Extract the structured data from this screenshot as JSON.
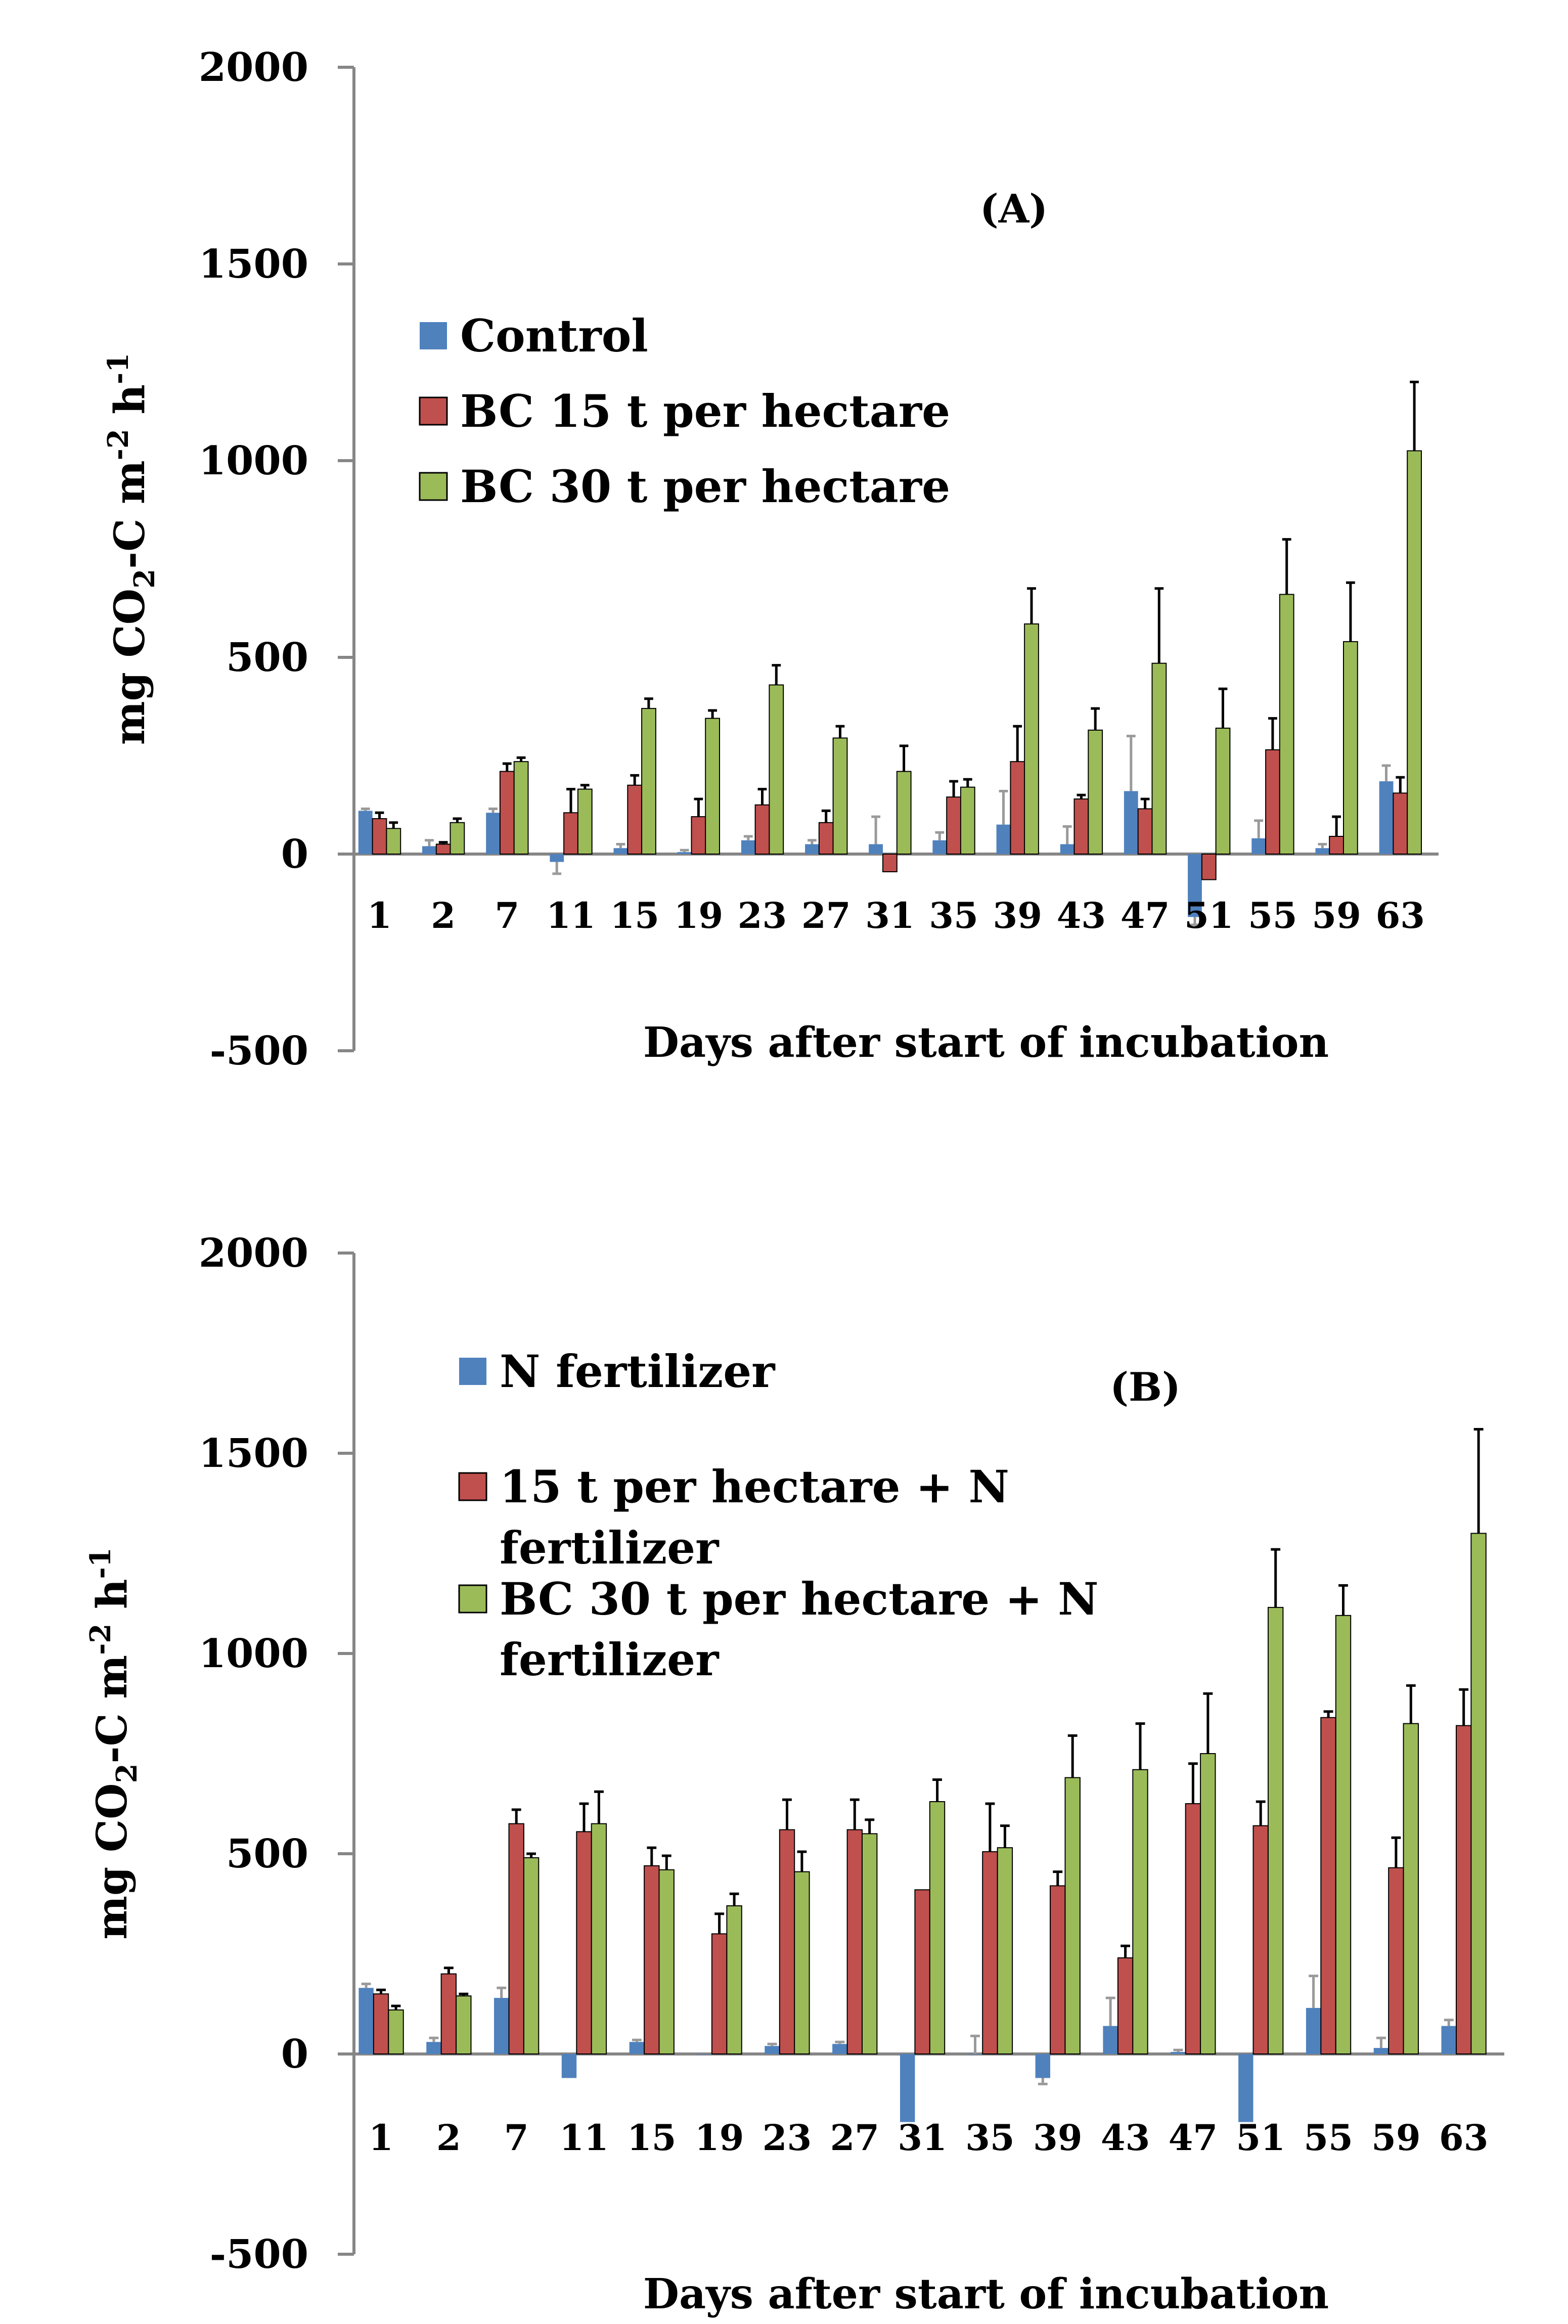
{
  "chart_data": [
    {
      "type": "bar",
      "panel": "(A)",
      "title": "",
      "xlabel": "Days after start of incubation",
      "ylabel": "mg CO2-C m-2 h-1",
      "ylabel_parts": {
        "pre": "mg CO",
        "sub": "2",
        "mid": "-C m",
        "sup1": "-2",
        "mid2": " h",
        "sup2": "-1"
      },
      "ylim": [
        -500,
        2000
      ],
      "yticks": [
        -500,
        0,
        500,
        1000,
        1500,
        2000
      ],
      "legend_position": "top-left",
      "categories": [
        "1",
        "2",
        "7",
        "11",
        "15",
        "19",
        "23",
        "27",
        "31",
        "35",
        "39",
        "43",
        "47",
        "51",
        "55",
        "59",
        "63"
      ],
      "series": [
        {
          "name": "Control",
          "color": "#4f81bd",
          "values": [
            110,
            20,
            105,
            -20,
            15,
            5,
            35,
            25,
            25,
            35,
            75,
            25,
            160,
            -160,
            40,
            15,
            185
          ],
          "errors": [
            5,
            15,
            10,
            30,
            10,
            5,
            10,
            10,
            70,
            20,
            85,
            45,
            140,
            20,
            45,
            10,
            40
          ]
        },
        {
          "name": "BC 15 t per hectare",
          "color": "#c0504d",
          "values": [
            90,
            25,
            210,
            105,
            175,
            95,
            125,
            80,
            -45,
            145,
            235,
            140,
            115,
            -65,
            265,
            45,
            155
          ],
          "errors": [
            15,
            5,
            20,
            60,
            25,
            45,
            40,
            30,
            0,
            40,
            90,
            10,
            25,
            0,
            80,
            50,
            40
          ]
        },
        {
          "name": "BC 30 t per hectare",
          "color": "#9bbb59",
          "values": [
            65,
            80,
            235,
            165,
            370,
            345,
            430,
            295,
            210,
            170,
            585,
            315,
            485,
            320,
            660,
            540,
            1025
          ],
          "errors": [
            15,
            10,
            10,
            10,
            25,
            20,
            50,
            30,
            65,
            20,
            90,
            55,
            190,
            100,
            140,
            150,
            175
          ]
        }
      ]
    },
    {
      "type": "bar",
      "panel": "(B)",
      "title": "",
      "xlabel": "Days after start of incubation",
      "ylabel": "mg CO2-C m-2 h-1",
      "ylabel_parts": {
        "pre": "mg CO",
        "sub": "2",
        "mid": "-C m",
        "sup1": "-2",
        "mid2": " h",
        "sup2": "-1"
      },
      "ylim": [
        -500,
        2000
      ],
      "yticks": [
        -500,
        0,
        500,
        1000,
        1500,
        2000
      ],
      "legend_position": "top-left",
      "categories": [
        "1",
        "2",
        "7",
        "11",
        "15",
        "19",
        "23",
        "27",
        "31",
        "35",
        "39",
        "43",
        "47",
        "51",
        "55",
        "59",
        "63"
      ],
      "series": [
        {
          "name": "N fertilizer",
          "label_lines": [
            "N fertilizer"
          ],
          "color": "#4f81bd",
          "values": [
            165,
            30,
            140,
            -60,
            30,
            0,
            20,
            25,
            -170,
            0,
            -60,
            70,
            5,
            -170,
            115,
            15,
            70
          ],
          "errors": [
            10,
            10,
            25,
            0,
            5,
            0,
            5,
            5,
            0,
            45,
            15,
            70,
            5,
            0,
            80,
            25,
            15
          ]
        },
        {
          "name": "15 t per hectare + N fertilizer",
          "label_lines": [
            "15 t per hectare + N",
            "fertilizer"
          ],
          "color": "#c0504d",
          "values": [
            150,
            200,
            575,
            555,
            470,
            300,
            560,
            560,
            410,
            505,
            420,
            240,
            625,
            570,
            840,
            465,
            820
          ],
          "errors": [
            10,
            15,
            35,
            70,
            45,
            50,
            75,
            75,
            0,
            120,
            35,
            30,
            100,
            60,
            15,
            75,
            90
          ]
        },
        {
          "name": "BC 30 t per hectare + N fertilizer",
          "label_lines": [
            "BC 30 t per hectare + N",
            "fertilizer"
          ],
          "color": "#9bbb59",
          "values": [
            110,
            145,
            490,
            575,
            460,
            370,
            455,
            550,
            630,
            515,
            690,
            710,
            750,
            1115,
            1095,
            825,
            1300
          ],
          "errors": [
            10,
            5,
            10,
            80,
            35,
            30,
            50,
            35,
            55,
            55,
            105,
            115,
            150,
            145,
            75,
            95,
            260
          ]
        }
      ]
    }
  ]
}
